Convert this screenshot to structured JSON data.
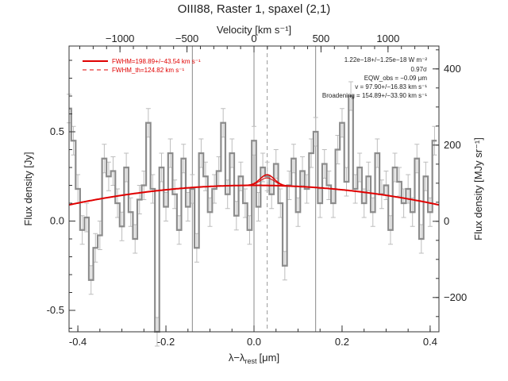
{
  "chart_data": {
    "type": "line",
    "title": "OIII88, Raster 1, spaxel (2,1)",
    "xlabel_main": "λ−λ",
    "xlabel_sub": "rest",
    "xlabel_unit": "[μm]",
    "top_axis_label": "Velocity [km s⁻¹]",
    "ylabel_left": "Flux density [Jy]",
    "ylabel_right": "Flux density [MJy sr⁻¹]",
    "xlim": [
      -0.42,
      0.42
    ],
    "ylim": [
      -0.62,
      0.98
    ],
    "top_xlim": [
      -1380,
      1380
    ],
    "right_ylim": [
      -290,
      460
    ],
    "bottom_ticks": [
      "-0.4",
      "-0.2",
      "0.0",
      "0.2",
      "0.4"
    ],
    "left_ticks": [
      "-0.5",
      "0.0",
      "0.5"
    ],
    "top_ticks": [
      "−1000",
      "−500",
      "0",
      "500",
      "1000"
    ],
    "right_ticks": [
      "−200",
      "0",
      "200",
      "400"
    ],
    "vertical_lines": [
      -0.14,
      0.0,
      0.14
    ],
    "dashed_line": 0.03,
    "legend": {
      "placement": "top-left",
      "entries": [
        {
          "label": "FWHM=198.89+/−43.54 km s⁻¹",
          "style": "solid"
        },
        {
          "label": "FWHM_th=124.82 km s⁻¹",
          "style": "dashed"
        }
      ]
    },
    "annotations": [
      "1.22e−18+/−1.25e−18 W m⁻²",
      "0.97σ",
      "EQW_obs = −0.09 μm",
      "v = 97.90+/−16.83 km s⁻¹",
      "Broadening = 154.89+/−33.90 km s⁻¹"
    ],
    "colors": {
      "spectrum": "#8c8c8c",
      "fit": "#e00000",
      "frame": "#333333"
    },
    "spectrum": {
      "x": [
        -0.42,
        -0.41,
        -0.4,
        -0.39,
        -0.38,
        -0.37,
        -0.36,
        -0.35,
        -0.34,
        -0.33,
        -0.32,
        -0.31,
        -0.3,
        -0.29,
        -0.28,
        -0.27,
        -0.26,
        -0.25,
        -0.24,
        -0.23,
        -0.22,
        -0.21,
        -0.2,
        -0.19,
        -0.18,
        -0.17,
        -0.16,
        -0.15,
        -0.14,
        -0.13,
        -0.12,
        -0.11,
        -0.1,
        -0.09,
        -0.08,
        -0.07,
        -0.06,
        -0.05,
        -0.04,
        -0.03,
        -0.02,
        -0.01,
        0.0,
        0.01,
        0.02,
        0.03,
        0.04,
        0.05,
        0.06,
        0.07,
        0.08,
        0.09,
        0.1,
        0.11,
        0.12,
        0.13,
        0.14,
        0.15,
        0.16,
        0.17,
        0.18,
        0.19,
        0.2,
        0.21,
        0.22,
        0.23,
        0.24,
        0.25,
        0.26,
        0.27,
        0.28,
        0.29,
        0.3,
        0.31,
        0.32,
        0.33,
        0.34,
        0.35,
        0.36,
        0.37,
        0.38,
        0.39,
        0.4,
        0.41
      ],
      "y": [
        0.63,
        0.45,
        0.18,
        -0.05,
        0.02,
        -0.33,
        -0.15,
        -0.08,
        0.35,
        0.25,
        0.28,
        0.1,
        -0.03,
        0.3,
        0.05,
        -0.1,
        0.12,
        0.2,
        0.55,
        0.18,
        -0.62,
        0.3,
        0.08,
        0.38,
        0.15,
        -0.05,
        0.35,
        0.08,
        0.18,
        -0.15,
        0.38,
        0.25,
        0.05,
        0.18,
        0.28,
        0.55,
        0.15,
        0.38,
        0.03,
        0.25,
        0.1,
        -0.05,
        0.45,
        0.08,
        0.3,
        0.25,
        0.15,
        0.32,
        0.1,
        -0.25,
        0.2,
        0.35,
        0.05,
        0.28,
        0.18,
        0.38,
        0.5,
        0.1,
        0.32,
        0.2,
        0.1,
        0.4,
        0.55,
        0.22,
        0.7,
        0.18,
        0.3,
        0.1,
        0.25,
        0.05,
        0.38,
        0.15,
        0.2,
        -0.05,
        0.3,
        0.22,
        0.1,
        0.18,
        0.05,
        0.35,
        -0.1,
        0.25,
        0.05,
        0.45
      ],
      "err": 0.08
    },
    "fit": {
      "baseline_center": 0.0,
      "baseline_peak": 0.2,
      "baseline_curvature": 0.62,
      "line_center": 0.03,
      "line_amplitude": 0.06,
      "line_sigma": 0.016
    }
  }
}
